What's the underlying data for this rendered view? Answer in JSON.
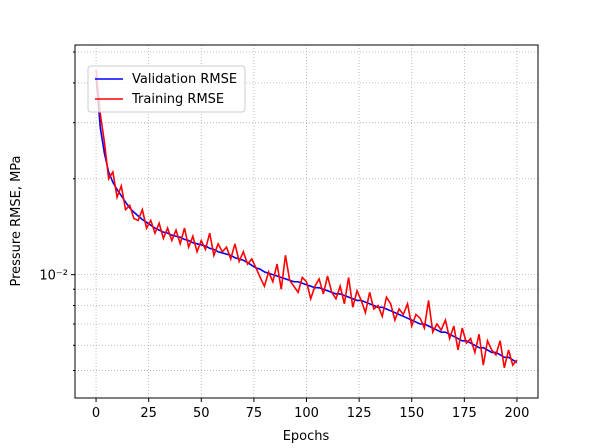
{
  "chart_data": {
    "type": "line",
    "xlabel": "Epochs",
    "ylabel": "Pressure RMSE, MPa",
    "x": [
      0,
      2,
      4,
      6,
      8,
      10,
      12,
      14,
      16,
      18,
      20,
      22,
      24,
      26,
      28,
      30,
      32,
      34,
      36,
      38,
      40,
      42,
      44,
      46,
      48,
      50,
      52,
      54,
      56,
      58,
      60,
      62,
      64,
      66,
      68,
      70,
      72,
      74,
      76,
      78,
      80,
      82,
      84,
      86,
      88,
      90,
      92,
      94,
      96,
      98,
      100,
      102,
      104,
      106,
      108,
      110,
      112,
      114,
      116,
      118,
      120,
      122,
      124,
      126,
      128,
      130,
      132,
      134,
      136,
      138,
      140,
      142,
      144,
      146,
      148,
      150,
      152,
      154,
      156,
      158,
      160,
      162,
      164,
      166,
      168,
      170,
      172,
      174,
      176,
      178,
      180,
      182,
      184,
      186,
      188,
      190,
      192,
      194,
      196,
      198,
      200
    ],
    "series": [
      {
        "name": "Validation RMSE",
        "color": "#0000ff",
        "values": [
          0.042,
          0.029,
          0.024,
          0.021,
          0.0195,
          0.0185,
          0.0177,
          0.0169,
          0.0162,
          0.0157,
          0.0153,
          0.0149,
          0.0146,
          0.0143,
          0.014,
          0.0138,
          0.0136,
          0.0135,
          0.0133,
          0.0132,
          0.0131,
          0.0129,
          0.0128,
          0.0126,
          0.0125,
          0.0124,
          0.0123,
          0.0121,
          0.012,
          0.0118,
          0.0117,
          0.0116,
          0.0115,
          0.0113,
          0.0112,
          0.0111,
          0.0109,
          0.0107,
          0.0105,
          0.0104,
          0.0102,
          0.0101,
          0.01,
          0.0099,
          0.0098,
          0.0097,
          0.0096,
          0.0095,
          0.0095,
          0.0094,
          0.0093,
          0.0092,
          0.0091,
          0.0091,
          0.009,
          0.0089,
          0.0088,
          0.0087,
          0.0087,
          0.0086,
          0.0085,
          0.0084,
          0.0083,
          0.0083,
          0.0082,
          0.0081,
          0.008,
          0.0079,
          0.0079,
          0.0078,
          0.0077,
          0.0076,
          0.0075,
          0.0074,
          0.0073,
          0.0072,
          0.0071,
          0.007,
          0.007,
          0.0069,
          0.0068,
          0.0067,
          0.0066,
          0.0066,
          0.0065,
          0.0064,
          0.0063,
          0.0062,
          0.0062,
          0.0061,
          0.006,
          0.0059,
          0.0059,
          0.0058,
          0.0057,
          0.0057,
          0.0056,
          0.0055,
          0.0055,
          0.0054,
          0.0053
        ]
      },
      {
        "name": "Training RMSE",
        "color": "#ff0000",
        "values": [
          0.044,
          0.032,
          0.026,
          0.02,
          0.021,
          0.0175,
          0.019,
          0.016,
          0.0165,
          0.015,
          0.0148,
          0.016,
          0.014,
          0.0148,
          0.0135,
          0.0145,
          0.013,
          0.014,
          0.0128,
          0.0138,
          0.0125,
          0.014,
          0.0122,
          0.0132,
          0.0118,
          0.0128,
          0.012,
          0.0135,
          0.0115,
          0.0125,
          0.0118,
          0.0122,
          0.0112,
          0.0125,
          0.011,
          0.0118,
          0.0108,
          0.0112,
          0.0105,
          0.0098,
          0.0092,
          0.0102,
          0.0095,
          0.0108,
          0.009,
          0.0115,
          0.0096,
          0.0092,
          0.0088,
          0.0098,
          0.0095,
          0.0084,
          0.0092,
          0.0097,
          0.0087,
          0.0099,
          0.0088,
          0.0084,
          0.0092,
          0.0081,
          0.0098,
          0.0079,
          0.0089,
          0.0083,
          0.0076,
          0.0088,
          0.0078,
          0.008,
          0.0074,
          0.0085,
          0.0081,
          0.0072,
          0.0078,
          0.0075,
          0.0081,
          0.0069,
          0.0075,
          0.0073,
          0.0068,
          0.0083,
          0.0066,
          0.007,
          0.0067,
          0.0072,
          0.0063,
          0.0069,
          0.0058,
          0.0068,
          0.0061,
          0.0063,
          0.0057,
          0.0065,
          0.0052,
          0.0062,
          0.0058,
          0.0056,
          0.0062,
          0.0051,
          0.0058,
          0.0052,
          0.0054
        ]
      }
    ],
    "xlim": [
      -10,
      210
    ],
    "xticks": [
      0,
      25,
      50,
      75,
      100,
      125,
      150,
      175,
      200
    ],
    "ylim": [
      0.0041,
      0.0526
    ],
    "ylog": true,
    "yticks": [
      {
        "value": 0.01,
        "label": "10⁻²"
      }
    ],
    "yminorticks": [
      0.005,
      0.006,
      0.007,
      0.008,
      0.009,
      0.02,
      0.03,
      0.04,
      0.05
    ],
    "grid": true,
    "legend": "upper left"
  }
}
